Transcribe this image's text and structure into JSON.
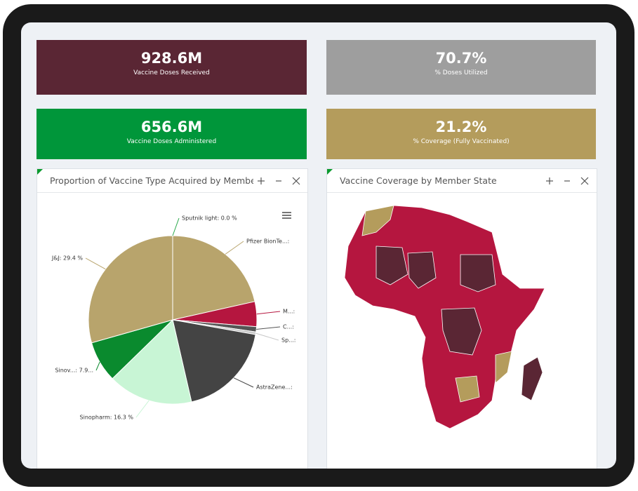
{
  "kpis": [
    {
      "value": "928.6M",
      "label": "Vaccine Doses Received"
    },
    {
      "value": "70.7%",
      "label": "% Doses Utilized"
    },
    {
      "value": "656.6M",
      "label": "Vaccine Doses Administered"
    },
    {
      "value": "21.2%",
      "label": "% Coverage (Fully Vaccinated)"
    }
  ],
  "chart_data": {
    "type": "pie",
    "title": "Proportion of Vaccine Type Acquired by Membe",
    "labels": [
      "Pfizer BionTe...: ",
      "M...:",
      "C...:",
      "Sp...:",
      "AstraZene...:",
      "Sinopharm: 16.3 %",
      "Sinov...: 7.9...",
      "J&J: 29.4 %",
      "Sputnik light: 0.0 %"
    ],
    "values": [
      21.5,
      4.8,
      1.0,
      0.5,
      18.6,
      16.3,
      7.9,
      29.4,
      0.0
    ],
    "colors": [
      "#b8a46c",
      "#b5163f",
      "#555555",
      "#c8c8c8",
      "#444444",
      "#c8f5d5",
      "#0a8a2e",
      "#b8a46c",
      "#2aa84a"
    ]
  },
  "map_panel": {
    "title": "Vaccine Coverage by Member State"
  }
}
